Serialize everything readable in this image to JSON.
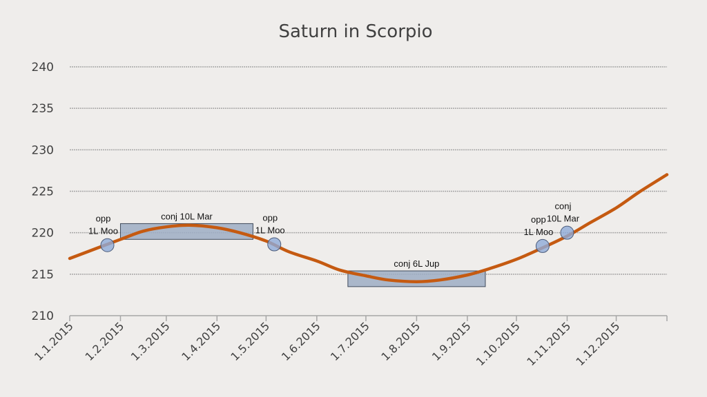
{
  "chart_data": {
    "type": "line",
    "title": "Saturn in Scorpio",
    "xlabel": "",
    "ylabel": "",
    "ylim": [
      210,
      240
    ],
    "yticks": [
      210,
      215,
      220,
      225,
      230,
      235,
      240
    ],
    "xticks": [
      "1.1.2015",
      "1.2.2015",
      "1.3.2015",
      "1.4.2015",
      "1.5.2015",
      "1.6.2015",
      "1.7.2015",
      "1.8.2015",
      "1.9.2015",
      "1.10.2015",
      "1.11.2015",
      "1.12.2015"
    ],
    "xlim": [
      "1.1.2015",
      "1.1.2016"
    ],
    "grid": true,
    "legend": "none",
    "line_color": "#c55a11",
    "series": [
      {
        "x": [
          "1.1.2015",
          "1.2.2015",
          "15.2.2015",
          "1.3.2015",
          "15.3.2015",
          "1.4.2015",
          "15.4.2015",
          "1.5.2015",
          "15.5.2015",
          "1.6.2015",
          "15.6.2015",
          "1.7.2015",
          "15.7.2015",
          "1.8.2015",
          "15.8.2015",
          "1.9.2015",
          "15.9.2015",
          "1.10.2015",
          "15.10.2015",
          "1.11.2015",
          "15.11.2015",
          "1.12.2015",
          "15.12.2015",
          "1.1.2016"
        ],
        "y": [
          216.9,
          219.2,
          220.2,
          220.7,
          220.9,
          220.6,
          220.0,
          219.0,
          217.7,
          216.6,
          215.5,
          214.8,
          214.3,
          214.1,
          214.3,
          214.9,
          215.7,
          216.8,
          218.0,
          219.6,
          221.2,
          223.0,
          224.9,
          227.0
        ]
      }
    ],
    "annotations": [
      {
        "kind": "circle",
        "x": "24.1.2015",
        "y": 218.5,
        "lines": [
          "opp",
          "1L Moo"
        ]
      },
      {
        "kind": "box",
        "x0": "1.2.2015",
        "x1": "23.4.2015",
        "y0": 219.2,
        "y1": 221.1,
        "lines": [
          "conj 10L Mar"
        ]
      },
      {
        "kind": "circle",
        "x": "6.5.2015",
        "y": 218.6,
        "lines": [
          "opp",
          "1L Moo"
        ]
      },
      {
        "kind": "box",
        "x0": "20.6.2015",
        "x1": "12.9.2015",
        "y0": 213.5,
        "y1": 215.4,
        "lines": [
          "conj 6L Jup"
        ]
      },
      {
        "kind": "circle",
        "x": "17.10.2015",
        "y": 218.4,
        "lines": [
          "opp",
          "1L Moo"
        ]
      },
      {
        "kind": "circle",
        "x": "1.11.2015",
        "y": 220.0,
        "lines": [
          "conj",
          "10L Mar"
        ]
      }
    ],
    "box_fill": "#9eadc4",
    "circle_fill": "#8eaad8"
  }
}
